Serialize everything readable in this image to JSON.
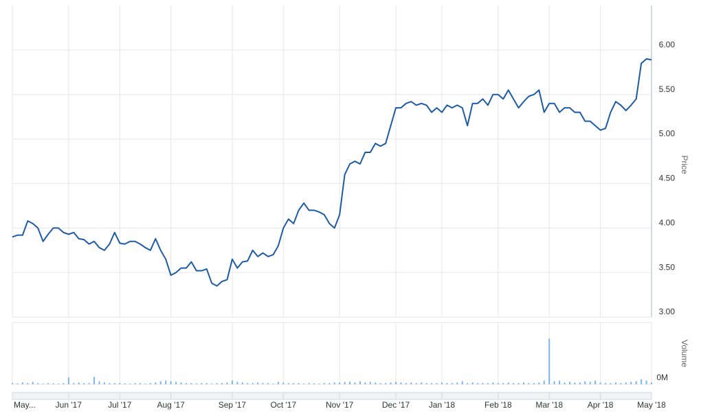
{
  "chart_data": {
    "type": "line",
    "y_label": "Price",
    "y2_label": "Volume",
    "categories": [
      "May...",
      null,
      null,
      null,
      null,
      null,
      null,
      null,
      null,
      null,
      null,
      "Jun '17",
      null,
      null,
      null,
      null,
      null,
      null,
      null,
      null,
      null,
      "Jul '17",
      null,
      null,
      null,
      null,
      null,
      null,
      null,
      null,
      null,
      "Aug '17",
      null,
      null,
      null,
      null,
      null,
      null,
      null,
      null,
      null,
      null,
      null,
      "Sep '17",
      null,
      null,
      null,
      null,
      null,
      null,
      null,
      null,
      null,
      "Oct '17",
      null,
      null,
      null,
      null,
      null,
      null,
      null,
      null,
      null,
      null,
      "Nov '17",
      null,
      null,
      null,
      null,
      null,
      null,
      null,
      null,
      null,
      null,
      "Dec '17",
      null,
      null,
      null,
      null,
      null,
      null,
      null,
      null,
      "Jan '18",
      null,
      null,
      null,
      null,
      null,
      null,
      null,
      null,
      null,
      null,
      "Feb '18",
      null,
      null,
      null,
      null,
      null,
      null,
      null,
      null,
      null,
      "Mar '18",
      null,
      null,
      null,
      null,
      null,
      null,
      null,
      null,
      null,
      "Apr '18",
      null,
      null,
      null,
      null,
      null,
      null,
      null,
      null,
      null,
      "May '18"
    ],
    "series": [
      {
        "color": "#1c5aa6",
        "values": [
          3.9,
          3.92,
          3.92,
          4.08,
          4.05,
          4.0,
          3.85,
          3.93,
          4.0,
          4.0,
          3.95,
          3.93,
          3.95,
          3.88,
          3.87,
          3.82,
          3.85,
          3.78,
          3.75,
          3.82,
          3.95,
          3.83,
          3.82,
          3.85,
          3.85,
          3.82,
          3.78,
          3.75,
          3.88,
          3.75,
          3.65,
          3.47,
          3.5,
          3.55,
          3.55,
          3.62,
          3.52,
          3.52,
          3.54,
          3.38,
          3.35,
          3.4,
          3.42,
          3.65,
          3.55,
          3.62,
          3.63,
          3.75,
          3.68,
          3.72,
          3.68,
          3.7,
          3.8,
          4.0,
          4.1,
          4.05,
          4.2,
          4.28,
          4.2,
          4.2,
          4.18,
          4.15,
          4.05,
          4.0,
          4.15,
          4.6,
          4.72,
          4.75,
          4.72,
          4.85,
          4.85,
          4.95,
          4.92,
          4.95,
          5.15,
          5.35,
          5.35,
          5.4,
          5.42,
          5.38,
          5.4,
          5.38,
          5.3,
          5.35,
          5.3,
          5.38,
          5.35,
          5.38,
          5.35,
          5.15,
          5.4,
          5.4,
          5.45,
          5.38,
          5.5,
          5.5,
          5.45,
          5.55,
          5.45,
          5.35,
          5.42,
          5.48,
          5.5,
          5.55,
          5.3,
          5.4,
          5.4,
          5.3,
          5.35,
          5.35,
          5.3,
          5.3,
          5.2,
          5.2,
          5.15,
          5.1,
          5.12,
          5.3,
          5.42,
          5.38,
          5.32,
          5.38,
          5.45,
          5.85,
          5.9,
          5.89
        ]
      },
      {
        "color": "#7cb5ec",
        "axis": "y2",
        "values": [
          0.2,
          0.15,
          0.3,
          0.2,
          0.4,
          0.2,
          0.1,
          0.2,
          0.15,
          0.1,
          0.2,
          1.1,
          0.2,
          0.3,
          0.2,
          0.2,
          1.2,
          0.5,
          0.3,
          0.2,
          0.2,
          0.2,
          0.15,
          0.1,
          0.2,
          0.2,
          0.1,
          0.2,
          0.3,
          0.5,
          0.6,
          0.5,
          0.4,
          0.3,
          0.2,
          0.2,
          0.15,
          0.2,
          0.2,
          0.1,
          0.2,
          0.2,
          0.3,
          0.6,
          0.4,
          0.3,
          0.2,
          0.2,
          0.3,
          0.2,
          0.2,
          0.1,
          0.4,
          0.3,
          0.2,
          0.2,
          0.2,
          0.1,
          0.2,
          0.15,
          0.1,
          0.2,
          0.2,
          0.3,
          0.3,
          0.4,
          0.4,
          0.3,
          0.5,
          0.3,
          0.4,
          0.3,
          0.2,
          0.2,
          0.3,
          0.4,
          0.3,
          0.2,
          0.3,
          0.2,
          0.3,
          0.2,
          0.2,
          0.2,
          0.3,
          0.2,
          0.2,
          0.3,
          0.5,
          0.2,
          0.3,
          0.2,
          0.2,
          0.2,
          0.3,
          0.2,
          0.2,
          0.3,
          0.2,
          0.2,
          0.3,
          0.2,
          0.2,
          0.3,
          0.6,
          7.4,
          0.5,
          0.6,
          0.3,
          0.4,
          0.3,
          0.3,
          0.5,
          0.4,
          0.6,
          0.3,
          0.2,
          0.2,
          0.3,
          0.2,
          0.3,
          0.4,
          0.5,
          0.8,
          0.6,
          0.3
        ]
      }
    ],
    "ylim": [
      3,
      6.5
    ],
    "yticks": [
      {
        "value": 3,
        "label": "3.00"
      },
      {
        "value": 3.5,
        "label": "3.50"
      },
      {
        "value": 4,
        "label": "4.00"
      },
      {
        "value": 4.5,
        "label": "4.50"
      },
      {
        "value": 5,
        "label": "5.00"
      },
      {
        "value": 5.5,
        "label": "5.50"
      },
      {
        "value": 6,
        "label": "6.00"
      }
    ],
    "y2lim": [
      0,
      10
    ],
    "y2ticks": [
      {
        "value": 0,
        "label": "0M"
      }
    ],
    "grid": true
  }
}
